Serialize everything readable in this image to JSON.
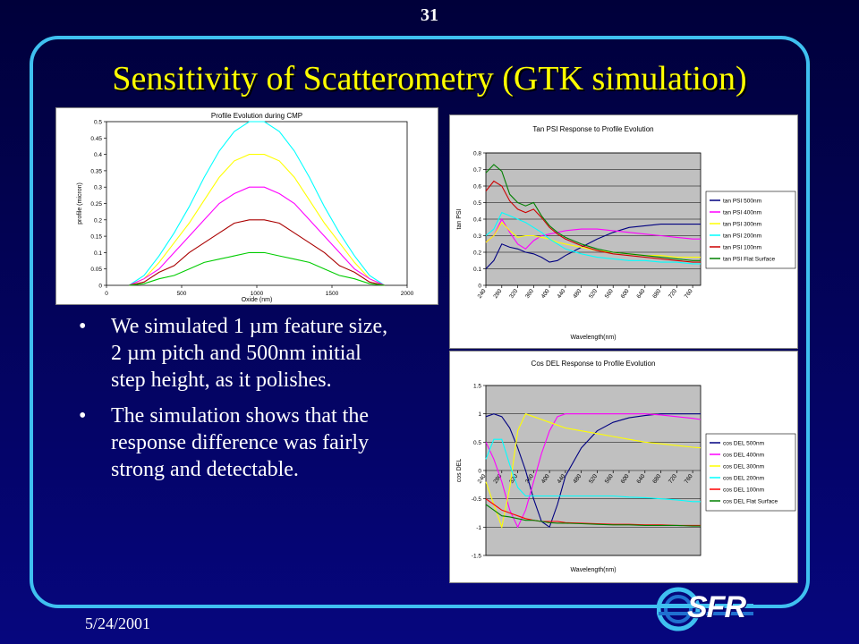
{
  "slide": {
    "number": "31",
    "title": "Sensitivity of Scatterometry (GTK simulation)",
    "date": "5/24/2001",
    "logo_text": "SFR",
    "bullets": [
      "We simulated 1 µm feature size, 2 µm pitch and 500nm initial step height, as it polishes.",
      "The simulation shows that the response difference was fairly strong and detectable."
    ]
  },
  "colors": {
    "background": "#06067e",
    "frame": "#3fc0f0",
    "title": "#ffff00",
    "plot_area": "#c0c0c0"
  },
  "chart_data": [
    {
      "type": "line",
      "title": "Profile Evolution during CMP",
      "xlabel": "Oxide (nm)",
      "ylabel": "profile (micron)",
      "xlim": [
        0,
        2000
      ],
      "ylim": [
        0,
        0.5
      ],
      "xticks": [
        "0",
        "500",
        "1000",
        "1500",
        "2000"
      ],
      "yticks": [
        "0",
        "0.05",
        "0.1",
        "0.15",
        "0.2",
        "0.25",
        "0.3",
        "0.35",
        "0.4",
        "0.45",
        "0.5"
      ],
      "x": [
        150,
        250,
        350,
        450,
        550,
        650,
        750,
        850,
        950,
        1000,
        1050,
        1150,
        1250,
        1350,
        1450,
        1550,
        1650,
        1750,
        1850
      ],
      "series": [
        {
          "color": "#00ffff",
          "values": [
            0,
            0.03,
            0.09,
            0.16,
            0.24,
            0.33,
            0.41,
            0.47,
            0.5,
            0.5,
            0.5,
            0.47,
            0.41,
            0.33,
            0.24,
            0.16,
            0.09,
            0.03,
            0
          ]
        },
        {
          "color": "#ffff00",
          "values": [
            0,
            0.02,
            0.07,
            0.13,
            0.19,
            0.26,
            0.33,
            0.38,
            0.4,
            0.4,
            0.4,
            0.38,
            0.33,
            0.26,
            0.19,
            0.13,
            0.07,
            0.02,
            0
          ]
        },
        {
          "color": "#ff00ff",
          "values": [
            0,
            0.02,
            0.05,
            0.1,
            0.15,
            0.2,
            0.25,
            0.28,
            0.3,
            0.3,
            0.3,
            0.28,
            0.25,
            0.2,
            0.15,
            0.1,
            0.05,
            0.02,
            0
          ]
        },
        {
          "color": "#aa0000",
          "values": [
            0,
            0.01,
            0.04,
            0.06,
            0.1,
            0.13,
            0.16,
            0.19,
            0.2,
            0.2,
            0.2,
            0.19,
            0.16,
            0.13,
            0.1,
            0.06,
            0.04,
            0.01,
            0
          ]
        },
        {
          "color": "#00cc00",
          "values": [
            0,
            0.005,
            0.02,
            0.03,
            0.05,
            0.07,
            0.08,
            0.09,
            0.1,
            0.1,
            0.1,
            0.09,
            0.08,
            0.07,
            0.05,
            0.03,
            0.02,
            0.005,
            0
          ]
        }
      ]
    },
    {
      "type": "line",
      "title": "Tan PSI Response to Profile Evolution",
      "xlabel": "Wavelength(nm)",
      "ylabel": "tan PSI",
      "xlim": [
        240,
        780
      ],
      "ylim": [
        0,
        0.8
      ],
      "xticks": [
        "240",
        "280",
        "320",
        "360",
        "400",
        "440",
        "480",
        "520",
        "560",
        "600",
        "640",
        "680",
        "720",
        "760"
      ],
      "yticks": [
        "0",
        "0.1",
        "0.2",
        "0.3",
        "0.4",
        "0.5",
        "0.6",
        "0.7",
        "0.8"
      ],
      "legend_position": "right",
      "x": [
        240,
        260,
        280,
        300,
        320,
        340,
        360,
        380,
        400,
        420,
        440,
        480,
        520,
        560,
        600,
        640,
        680,
        720,
        760,
        780
      ],
      "series": [
        {
          "name": "tan PSI 500nm",
          "color": "#000080",
          "values": [
            0.1,
            0.15,
            0.25,
            0.23,
            0.22,
            0.2,
            0.19,
            0.17,
            0.14,
            0.15,
            0.18,
            0.23,
            0.28,
            0.32,
            0.35,
            0.36,
            0.37,
            0.37,
            0.37,
            0.37
          ]
        },
        {
          "name": "tan PSI 400nm",
          "color": "#ff00ff",
          "values": [
            0.26,
            0.3,
            0.4,
            0.32,
            0.25,
            0.22,
            0.27,
            0.3,
            0.31,
            0.32,
            0.33,
            0.34,
            0.34,
            0.33,
            0.32,
            0.31,
            0.3,
            0.29,
            0.28,
            0.28
          ]
        },
        {
          "name": "tan PSI 300nm",
          "color": "#ffff00",
          "values": [
            0.26,
            0.3,
            0.38,
            0.33,
            0.29,
            0.3,
            0.3,
            0.29,
            0.28,
            0.26,
            0.25,
            0.23,
            0.21,
            0.2,
            0.19,
            0.18,
            0.18,
            0.17,
            0.17,
            0.17
          ]
        },
        {
          "name": "tan PSI 200nm",
          "color": "#00ffff",
          "values": [
            0.3,
            0.34,
            0.44,
            0.42,
            0.4,
            0.38,
            0.35,
            0.32,
            0.28,
            0.25,
            0.22,
            0.19,
            0.17,
            0.16,
            0.15,
            0.15,
            0.14,
            0.14,
            0.13,
            0.13
          ]
        },
        {
          "name": "tan PSI 100nm",
          "color": "#cc0000",
          "values": [
            0.57,
            0.63,
            0.6,
            0.51,
            0.46,
            0.44,
            0.46,
            0.41,
            0.35,
            0.31,
            0.28,
            0.24,
            0.21,
            0.19,
            0.18,
            0.17,
            0.16,
            0.15,
            0.14,
            0.14
          ]
        },
        {
          "name": "tan PSI Flat Surface",
          "color": "#008000",
          "values": [
            0.68,
            0.73,
            0.69,
            0.55,
            0.5,
            0.48,
            0.5,
            0.42,
            0.36,
            0.32,
            0.29,
            0.25,
            0.22,
            0.2,
            0.19,
            0.18,
            0.17,
            0.16,
            0.15,
            0.15
          ]
        }
      ]
    },
    {
      "type": "line",
      "title": "Cos DEL Response to Profile Evolution",
      "xlabel": "Wavelength(nm)",
      "ylabel": "cos DEL",
      "xlim": [
        240,
        780
      ],
      "ylim": [
        -1.5,
        1.5
      ],
      "xticks": [
        "240",
        "280",
        "320",
        "360",
        "400",
        "440",
        "480",
        "520",
        "560",
        "600",
        "640",
        "680",
        "720",
        "760"
      ],
      "yticks": [
        "-1.5",
        "-1",
        "-0.5",
        "0",
        "0.5",
        "1",
        "1.5"
      ],
      "legend_position": "right",
      "x": [
        240,
        260,
        280,
        300,
        320,
        340,
        360,
        380,
        400,
        420,
        440,
        480,
        520,
        560,
        600,
        640,
        680,
        720,
        760,
        780
      ],
      "series": [
        {
          "name": "cos DEL 500nm",
          "color": "#000080",
          "values": [
            0.95,
            1.0,
            0.95,
            0.75,
            0.4,
            0.0,
            -0.5,
            -0.9,
            -1.0,
            -0.6,
            -0.1,
            0.4,
            0.7,
            0.85,
            0.93,
            0.97,
            1.0,
            1.0,
            1.0,
            1.0
          ]
        },
        {
          "name": "cos DEL 400nm",
          "color": "#ff00ff",
          "values": [
            0.5,
            0.2,
            -0.2,
            -0.7,
            -1.0,
            -0.7,
            -0.2,
            0.3,
            0.7,
            0.95,
            1.0,
            1.0,
            1.0,
            1.0,
            1.0,
            1.0,
            0.98,
            0.95,
            0.92,
            0.9
          ]
        },
        {
          "name": "cos DEL 300nm",
          "color": "#ffff00",
          "values": [
            -0.2,
            -0.6,
            -1.0,
            -0.3,
            0.7,
            1.0,
            0.95,
            0.9,
            0.85,
            0.8,
            0.75,
            0.7,
            0.65,
            0.6,
            0.55,
            0.5,
            0.47,
            0.44,
            0.41,
            0.4
          ]
        },
        {
          "name": "cos DEL 200nm",
          "color": "#00ffff",
          "values": [
            0.2,
            0.55,
            0.55,
            0.1,
            -0.3,
            -0.45,
            -0.45,
            -0.45,
            -0.45,
            -0.45,
            -0.45,
            -0.45,
            -0.45,
            -0.45,
            -0.47,
            -0.48,
            -0.5,
            -0.52,
            -0.55,
            -0.55
          ]
        },
        {
          "name": "cos DEL 100nm",
          "color": "#ff0000",
          "values": [
            -0.5,
            -0.6,
            -0.7,
            -0.75,
            -0.8,
            -0.85,
            -0.88,
            -0.9,
            -0.9,
            -0.9,
            -0.92,
            -0.93,
            -0.94,
            -0.95,
            -0.95,
            -0.96,
            -0.96,
            -0.97,
            -0.97,
            -0.97
          ]
        },
        {
          "name": "cos DEL Flat Surface",
          "color": "#008000",
          "values": [
            -0.6,
            -0.7,
            -0.8,
            -0.82,
            -0.85,
            -0.88,
            -0.88,
            -0.9,
            -0.92,
            -0.93,
            -0.93,
            -0.94,
            -0.95,
            -0.96,
            -0.96,
            -0.97,
            -0.97,
            -0.97,
            -0.98,
            -0.98
          ]
        }
      ]
    }
  ]
}
